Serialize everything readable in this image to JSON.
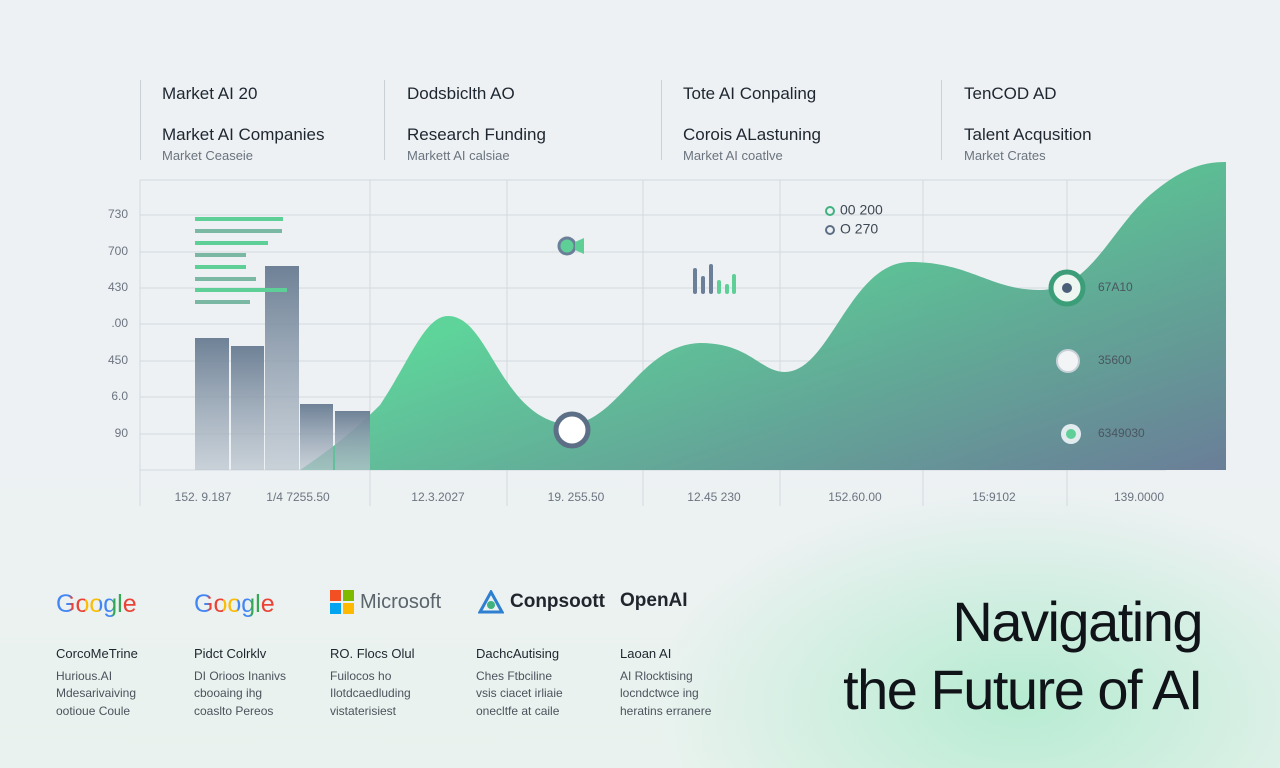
{
  "header": {
    "columns": [
      {
        "title": "Market AI 20",
        "subtitle": "Market AI Companies",
        "caption": "Market Ceaseie"
      },
      {
        "title": "Dodsbiclth AO",
        "subtitle": "Research Funding",
        "caption": "Markett AI calsiae"
      },
      {
        "title": "Tote AI Conpaling",
        "subtitle": "Corois ALastuning",
        "caption": "Market AI coatlve"
      },
      {
        "title": "TenCOD AD",
        "subtitle": "Talent Acqusition",
        "caption": "Market Crates"
      }
    ]
  },
  "chart": {
    "y_labels": [
      "730",
      "700",
      "430",
      ".00",
      "450",
      "6.0",
      "90"
    ],
    "x_labels": [
      "152. 9.187",
      "1/4 7255.50",
      "12.3.2027",
      "19. 255.50",
      "12.45 230",
      "152.60.00",
      "15:9102",
      "139.0000"
    ],
    "legend": [
      "00 200",
      "O 270"
    ],
    "callouts": [
      "67A10",
      "35600",
      "6349030"
    ]
  },
  "companies": [
    {
      "logo": "Google",
      "lines": [
        "CorcoMeTrine",
        "Hurious.AI",
        "Mdesarivaiving",
        "ootioue Coule"
      ]
    },
    {
      "logo": "Google",
      "lines": [
        "Pidct Colrklv",
        "DI Orioos Inanivs",
        "cbooaing ihg",
        "coaslto Pereos"
      ]
    },
    {
      "logo": "Microsoft",
      "lines": [
        "RO. Flocs Olul",
        "Fuilocos ho",
        "Ilotdcaedluding",
        "vistaterisiest"
      ]
    },
    {
      "logo": "Conpsoott",
      "lines": [
        "DachcAutising",
        "Ches Ftbciline",
        "vsis ciacet irliaie",
        "onecltfe at caile"
      ]
    },
    {
      "logo": "OpenAI",
      "lines": [
        "Laoan AI",
        "AI Rlocktising",
        "locndctwce ing",
        "heratins erranere"
      ]
    }
  ],
  "title": [
    "Navigating",
    "the Future of AI"
  ]
}
